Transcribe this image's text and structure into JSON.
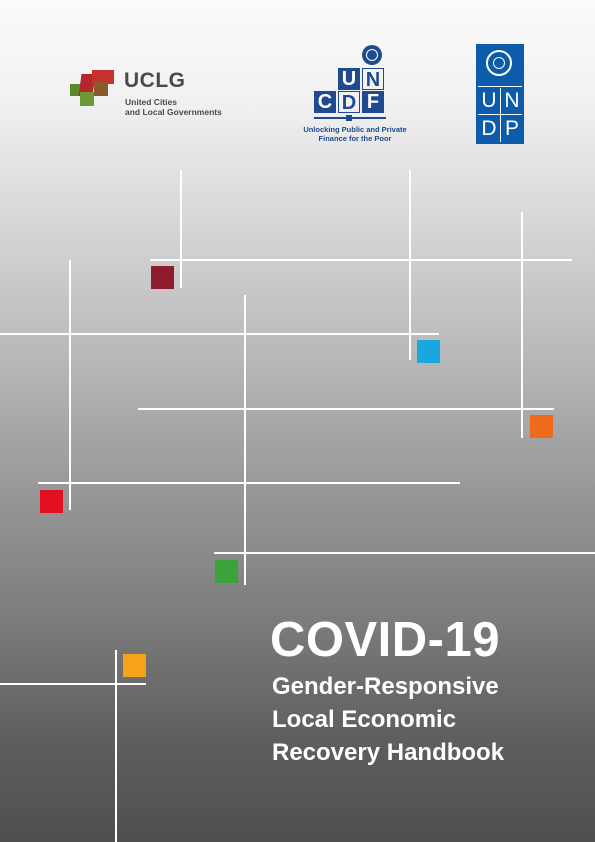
{
  "logos": {
    "uclg": {
      "name": "UCLG",
      "line1": "United Cities",
      "line2": "and Local Governments"
    },
    "uncdf": {
      "letters": [
        "U",
        "N",
        "C",
        "D",
        "F"
      ],
      "tagline1": "Unlocking Public and Private",
      "tagline2": "Finance for the Poor"
    },
    "undp": {
      "letters": [
        "U",
        "N",
        "D",
        "P"
      ]
    }
  },
  "cover": {
    "title": "COVID-19",
    "subtitle_lines": [
      "Gender-Responsive",
      "Local Economic",
      "Recovery Handbook"
    ]
  },
  "colors": {
    "maroon": "#8f1b2e",
    "cyan": "#1aa7df",
    "orange": "#ec6b1c",
    "red": "#e30f22",
    "green": "#3aa23b",
    "yellow": "#f6a31a",
    "uncdf_blue": "#1f4a8f",
    "undp_blue": "#0d5bab"
  }
}
